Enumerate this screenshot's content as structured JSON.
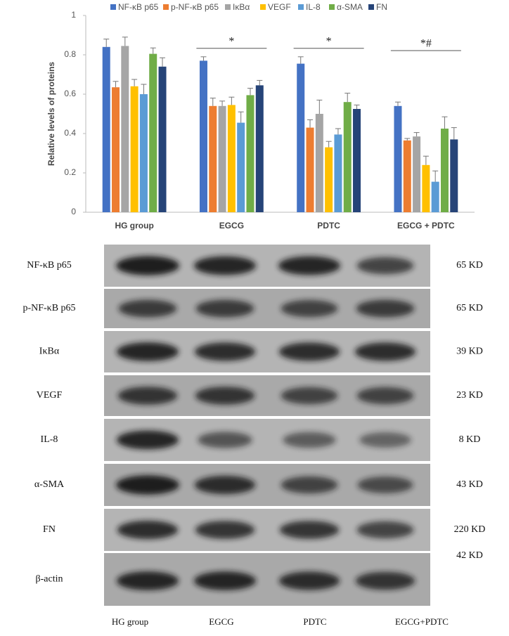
{
  "chart_data": {
    "type": "bar",
    "ylabel": "Relative levels of proteins",
    "categories": [
      "HG group",
      "EGCG",
      "PDTC",
      "EGCG + PDTC"
    ],
    "ylim": [
      0,
      1
    ],
    "yticks": [
      0,
      0.2,
      0.4,
      0.6,
      0.8,
      1
    ],
    "legend": "top",
    "series": [
      {
        "name": "NF-κB p65",
        "color": "#4472c4",
        "values": [
          0.84,
          0.77,
          0.755,
          0.54
        ],
        "errors": [
          0.04,
          0.02,
          0.035,
          0.02
        ]
      },
      {
        "name": "p-NF-κB p65",
        "color": "#ed7d31",
        "values": [
          0.635,
          0.54,
          0.43,
          0.365
        ],
        "errors": [
          0.03,
          0.04,
          0.04,
          0.01
        ]
      },
      {
        "name": "IκBα",
        "color": "#a5a5a5",
        "values": [
          0.845,
          0.54,
          0.5,
          0.385
        ],
        "errors": [
          0.045,
          0.025,
          0.07,
          0.02
        ]
      },
      {
        "name": "VEGF",
        "color": "#ffc000",
        "values": [
          0.64,
          0.545,
          0.33,
          0.24
        ],
        "errors": [
          0.035,
          0.04,
          0.03,
          0.045
        ]
      },
      {
        "name": "IL-8",
        "color": "#5b9bd5",
        "values": [
          0.6,
          0.455,
          0.395,
          0.155
        ],
        "errors": [
          0.05,
          0.055,
          0.03,
          0.055
        ]
      },
      {
        "name": "α-SMA",
        "color": "#70ad47",
        "values": [
          0.805,
          0.595,
          0.56,
          0.425
        ],
        "errors": [
          0.03,
          0.035,
          0.045,
          0.06
        ]
      },
      {
        "name": "FN",
        "color": "#264478",
        "values": [
          0.74,
          0.645,
          0.525,
          0.37
        ],
        "errors": [
          0.045,
          0.025,
          0.02,
          0.06
        ]
      }
    ],
    "annotations": [
      {
        "text": "*",
        "category": "EGCG"
      },
      {
        "text": "*",
        "category": "PDTC"
      },
      {
        "text": "*#",
        "category": "EGCG + PDTC"
      }
    ]
  },
  "blot": {
    "rows": [
      {
        "label": "NF-κB p65",
        "size": "65 KD"
      },
      {
        "label": "p-NF-κB p65",
        "size": "65 KD"
      },
      {
        "label": "IκBα",
        "size": "39 KD"
      },
      {
        "label": "VEGF",
        "size": "23 KD"
      },
      {
        "label": "IL-8",
        "size": "8 KD"
      },
      {
        "label": "α-SMA",
        "size": "43 KD"
      },
      {
        "label": "FN",
        "size": "220 KD"
      },
      {
        "label": "β-actin",
        "size": "42 KD"
      }
    ],
    "lanes": [
      "HG group",
      "EGCG",
      "PDTC",
      "EGCG+PDTC"
    ]
  }
}
